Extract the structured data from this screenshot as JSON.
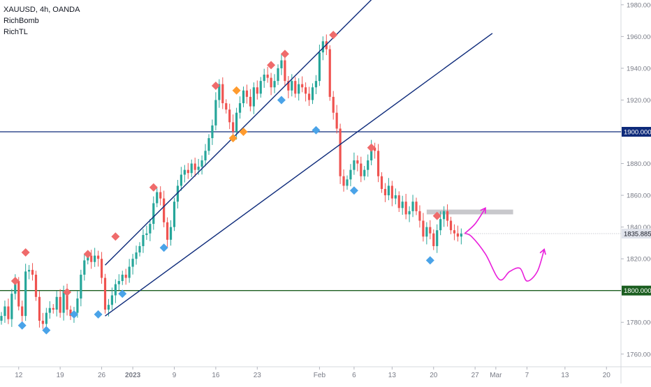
{
  "chart": {
    "symbol_line": "XAUUSD, 4h, OANDA",
    "indicators": [
      "RichBomb",
      "RichTL"
    ],
    "colors": {
      "up_candle": "#26a69a",
      "down_candle": "#ef5350",
      "resistance_line": "#0d2a7a",
      "support_line": "#1b5e20",
      "channel": "#0d2a7a",
      "projection": "#e91edb",
      "zone": "#c8c8cc",
      "marker_red": "#ef6b6b",
      "marker_blue": "#4aa3e8",
      "marker_orange": "#ff9b2e"
    }
  },
  "chart_data": {
    "type": "candlestick",
    "y_axis": {
      "ylim": [
        1752,
        1983
      ],
      "ticks": [
        "1760.000",
        "1780.000",
        "1800.000",
        "1820.000",
        "1840.000",
        "1860.000",
        "1880.000",
        "1900.000",
        "1920.000",
        "1940.000",
        "1960.000",
        "1980.000"
      ],
      "position": "right"
    },
    "x_axis": {
      "ticks": [
        {
          "label": "12",
          "bar": 5
        },
        {
          "label": "19",
          "bar": 17
        },
        {
          "label": "26",
          "bar": 29
        },
        {
          "label": "2023",
          "bar": 38,
          "bold": true
        },
        {
          "label": "9",
          "bar": 50
        },
        {
          "label": "16",
          "bar": 62
        },
        {
          "label": "23",
          "bar": 74
        },
        {
          "label": "Feb",
          "bar": 92
        },
        {
          "label": "6",
          "bar": 102
        },
        {
          "label": "13",
          "bar": 113
        },
        {
          "label": "20",
          "bar": 125
        },
        {
          "label": "27",
          "bar": 137
        },
        {
          "label": "Mar",
          "bar": 143
        },
        {
          "label": "7",
          "bar": 152
        },
        {
          "label": "13",
          "bar": 163
        },
        {
          "label": "20",
          "bar": 175
        }
      ]
    },
    "horizontal_lines": [
      {
        "price": 1900.0,
        "label": "1900.000",
        "kind": "resistance"
      },
      {
        "price": 1800.0,
        "label": "1800.000",
        "kind": "support"
      }
    ],
    "current_price": {
      "price": 1835.885,
      "label": "1835.885"
    },
    "closes": [
      1784,
      1790,
      1782,
      1798,
      1806,
      1790,
      1784,
      1812,
      1813,
      1810,
      1796,
      1781,
      1779,
      1786,
      1789,
      1788,
      1796,
      1786,
      1800,
      1788,
      1784,
      1786,
      1795,
      1810,
      1819,
      1822,
      1818,
      1822,
      1820,
      1808,
      1788,
      1791,
      1797,
      1804,
      1806,
      1810,
      1808,
      1815,
      1820,
      1824,
      1828,
      1835,
      1836,
      1842,
      1855,
      1862,
      1858,
      1843,
      1832,
      1840,
      1856,
      1866,
      1873,
      1876,
      1874,
      1880,
      1876,
      1878,
      1882,
      1888,
      1896,
      1904,
      1920,
      1930,
      1918,
      1914,
      1906,
      1900,
      1912,
      1918,
      1926,
      1922,
      1916,
      1928,
      1924,
      1932,
      1936,
      1934,
      1928,
      1932,
      1940,
      1945,
      1932,
      1926,
      1932,
      1924,
      1930,
      1928,
      1924,
      1920,
      1928,
      1932,
      1950,
      1957,
      1952,
      1922,
      1912,
      1902,
      1872,
      1866,
      1870,
      1876,
      1882,
      1880,
      1872,
      1876,
      1882,
      1890,
      1888,
      1872,
      1864,
      1860,
      1866,
      1858,
      1860,
      1852,
      1856,
      1848,
      1850,
      1856,
      1850,
      1844,
      1834,
      1840,
      1836,
      1828,
      1838,
      1845,
      1850,
      1844,
      1838,
      1836,
      1834,
      1836
    ],
    "channel": {
      "lower": [
        {
          "bar": 30,
          "price": 1784
        },
        {
          "bar": 142,
          "price": 1962
        }
      ],
      "upper": [
        {
          "bar": 30,
          "price": 1816
        },
        {
          "bar": 112,
          "price": 1994
        }
      ]
    },
    "zone": {
      "from_bar": 123,
      "to_bar": 148,
      "price_low": 1848,
      "price_high": 1851
    },
    "projection": [
      {
        "bar": 134,
        "price": 1836
      },
      {
        "bar": 136,
        "price": 1834
      },
      {
        "bar": 140,
        "price": 1823
      },
      {
        "bar": 144,
        "price": 1807
      },
      {
        "bar": 147,
        "price": 1812
      },
      {
        "bar": 150,
        "price": 1814
      },
      {
        "bar": 152,
        "price": 1806
      },
      {
        "bar": 155,
        "price": 1812
      },
      {
        "bar": 157,
        "price": 1826
      }
    ],
    "projection_short": [
      {
        "bar": 134,
        "price": 1836
      },
      {
        "bar": 137,
        "price": 1842
      },
      {
        "bar": 140,
        "price": 1852
      }
    ],
    "markers": [
      {
        "bar": 4,
        "price": 1806,
        "color": "red"
      },
      {
        "bar": 7,
        "price": 1824,
        "color": "red"
      },
      {
        "bar": 6,
        "price": 1778,
        "color": "blue"
      },
      {
        "bar": 13,
        "price": 1775,
        "color": "blue"
      },
      {
        "bar": 19,
        "price": 1799,
        "color": "red"
      },
      {
        "bar": 21,
        "price": 1785,
        "color": "blue"
      },
      {
        "bar": 25,
        "price": 1823,
        "color": "red"
      },
      {
        "bar": 28,
        "price": 1785,
        "color": "blue"
      },
      {
        "bar": 33,
        "price": 1834,
        "color": "red"
      },
      {
        "bar": 35,
        "price": 1798,
        "color": "blue"
      },
      {
        "bar": 44,
        "price": 1865,
        "color": "red"
      },
      {
        "bar": 47,
        "price": 1827,
        "color": "blue"
      },
      {
        "bar": 62,
        "price": 1929,
        "color": "red"
      },
      {
        "bar": 68,
        "price": 1926,
        "color": "orange"
      },
      {
        "bar": 67,
        "price": 1896,
        "color": "orange"
      },
      {
        "bar": 70,
        "price": 1900,
        "color": "orange"
      },
      {
        "bar": 78,
        "price": 1942,
        "color": "red"
      },
      {
        "bar": 81,
        "price": 1920,
        "color": "blue"
      },
      {
        "bar": 82,
        "price": 1949,
        "color": "red"
      },
      {
        "bar": 91,
        "price": 1901,
        "color": "blue"
      },
      {
        "bar": 96,
        "price": 1961,
        "color": "red"
      },
      {
        "bar": 102,
        "price": 1863,
        "color": "blue"
      },
      {
        "bar": 107,
        "price": 1890,
        "color": "red"
      },
      {
        "bar": 124,
        "price": 1819,
        "color": "blue"
      },
      {
        "bar": 126,
        "price": 1847,
        "color": "red"
      }
    ]
  }
}
